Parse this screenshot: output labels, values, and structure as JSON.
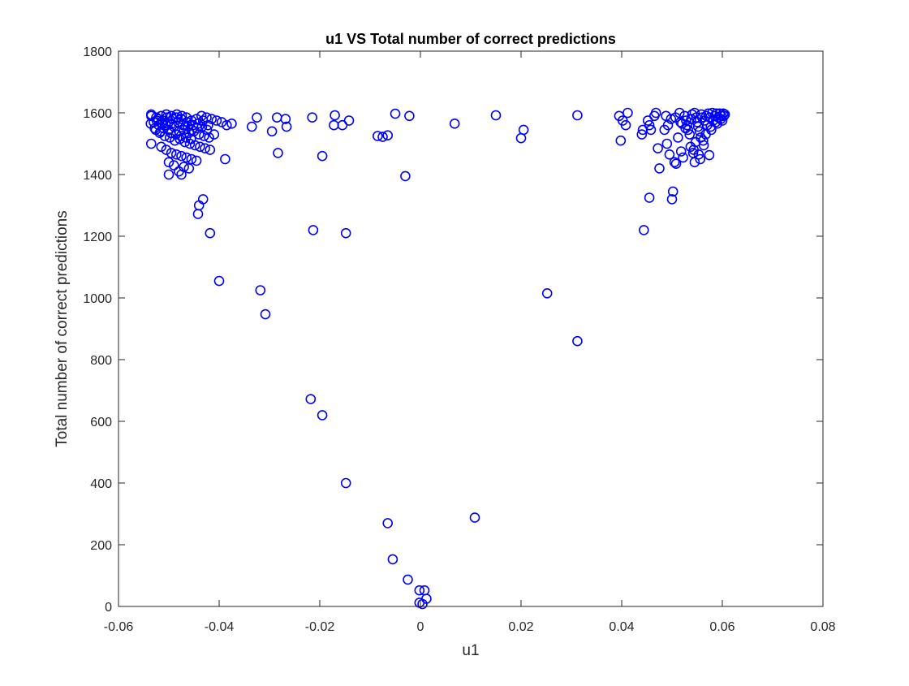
{
  "chart_data": {
    "type": "scatter",
    "title": "u1 VS Total number of correct predictions",
    "xlabel": "u1",
    "ylabel": "Total number of correct predictions",
    "xlim": [
      -0.06,
      0.08
    ],
    "ylim": [
      0,
      1800
    ],
    "xticks": [
      -0.06,
      -0.04,
      -0.02,
      0,
      0.02,
      0.04,
      0.06,
      0.08
    ],
    "xtick_labels": [
      "-0.06",
      "-0.04",
      "-0.02",
      "0",
      "0.02",
      "0.04",
      "0.06",
      "0.08"
    ],
    "yticks": [
      0,
      200,
      400,
      600,
      800,
      1000,
      1200,
      1400,
      1600,
      1800
    ],
    "ytick_labels": [
      "0",
      "200",
      "400",
      "600",
      "800",
      "1000",
      "1200",
      "1400",
      "1600",
      "1800"
    ],
    "grid": false,
    "legend": "none",
    "marker": "open-circle",
    "color": "#0000ff",
    "series": [
      {
        "points": [
          [
            -0.0535,
            1590
          ],
          [
            -0.0525,
            1585
          ],
          [
            -0.0515,
            1590
          ],
          [
            -0.0505,
            1595
          ],
          [
            -0.0495,
            1590
          ],
          [
            -0.0485,
            1585
          ],
          [
            -0.0475,
            1580
          ],
          [
            -0.0465,
            1585
          ],
          [
            -0.0455,
            1575
          ],
          [
            -0.0445,
            1580
          ],
          [
            -0.0435,
            1590
          ],
          [
            -0.0425,
            1585
          ],
          [
            -0.0415,
            1580
          ],
          [
            -0.0405,
            1575
          ],
          [
            -0.0395,
            1570
          ],
          [
            -0.0385,
            1560
          ],
          [
            -0.0375,
            1565
          ],
          [
            -0.053,
            1570
          ],
          [
            -0.052,
            1560
          ],
          [
            -0.051,
            1550
          ],
          [
            -0.05,
            1545
          ],
          [
            -0.049,
            1555
          ],
          [
            -0.048,
            1540
          ],
          [
            -0.047,
            1545
          ],
          [
            -0.046,
            1535
          ],
          [
            -0.045,
            1540
          ],
          [
            -0.044,
            1530
          ],
          [
            -0.043,
            1525
          ],
          [
            -0.042,
            1520
          ],
          [
            -0.041,
            1530
          ],
          [
            -0.0528,
            1550
          ],
          [
            -0.0518,
            1535
          ],
          [
            -0.0508,
            1525
          ],
          [
            -0.0498,
            1520
          ],
          [
            -0.0488,
            1510
          ],
          [
            -0.0478,
            1515
          ],
          [
            -0.0468,
            1505
          ],
          [
            -0.0458,
            1500
          ],
          [
            -0.0448,
            1495
          ],
          [
            -0.0438,
            1490
          ],
          [
            -0.0428,
            1485
          ],
          [
            -0.0418,
            1480
          ],
          [
            -0.0535,
            1500
          ],
          [
            -0.0515,
            1490
          ],
          [
            -0.0505,
            1480
          ],
          [
            -0.0495,
            1470
          ],
          [
            -0.0485,
            1465
          ],
          [
            -0.0475,
            1460
          ],
          [
            -0.0465,
            1455
          ],
          [
            -0.0455,
            1450
          ],
          [
            -0.0445,
            1445
          ],
          [
            -0.05,
            1440
          ],
          [
            -0.049,
            1430
          ],
          [
            -0.047,
            1425
          ],
          [
            -0.046,
            1420
          ],
          [
            -0.048,
            1410
          ],
          [
            -0.05,
            1400
          ],
          [
            -0.0475,
            1400
          ],
          [
            -0.0535,
            1595
          ],
          [
            -0.0522,
            1580
          ],
          [
            -0.0512,
            1575
          ],
          [
            -0.0502,
            1565
          ],
          [
            -0.0492,
            1580
          ],
          [
            -0.0482,
            1570
          ],
          [
            -0.0472,
            1560
          ],
          [
            -0.0462,
            1555
          ],
          [
            -0.0452,
            1560
          ],
          [
            -0.0442,
            1565
          ],
          [
            -0.0432,
            1575
          ],
          [
            -0.0422,
            1560
          ],
          [
            -0.0526,
            1545
          ],
          [
            -0.0516,
            1540
          ],
          [
            -0.0506,
            1560
          ],
          [
            -0.0496,
            1535
          ],
          [
            -0.0486,
            1530
          ],
          [
            -0.0476,
            1525
          ],
          [
            -0.0466,
            1520
          ],
          [
            -0.0456,
            1515
          ],
          [
            -0.0536,
            1565
          ],
          [
            -0.0524,
            1575
          ],
          [
            -0.0514,
            1565
          ],
          [
            -0.0504,
            1585
          ],
          [
            -0.0494,
            1565
          ],
          [
            -0.0484,
            1595
          ],
          [
            -0.0474,
            1590
          ],
          [
            -0.0464,
            1570
          ],
          [
            -0.0454,
            1545
          ],
          [
            -0.0444,
            1550
          ],
          [
            -0.0434,
            1555
          ],
          [
            -0.0424,
            1545
          ],
          [
            -0.0388,
            1450
          ],
          [
            -0.044,
            1300
          ],
          [
            -0.0442,
            1272
          ],
          [
            -0.0432,
            1320
          ],
          [
            -0.0418,
            1210
          ],
          [
            -0.04,
            1055
          ],
          [
            -0.0335,
            1555
          ],
          [
            -0.0325,
            1585
          ],
          [
            -0.0295,
            1540
          ],
          [
            -0.0285,
            1585
          ],
          [
            -0.0268,
            1580
          ],
          [
            -0.0266,
            1555
          ],
          [
            -0.0283,
            1470
          ],
          [
            -0.0318,
            1025
          ],
          [
            -0.0308,
            947
          ],
          [
            -0.0215,
            1585
          ],
          [
            -0.0213,
            1220
          ],
          [
            -0.0195,
            1460
          ],
          [
            -0.0172,
            1560
          ],
          [
            -0.017,
            1592
          ],
          [
            -0.0155,
            1560
          ],
          [
            -0.0142,
            1575
          ],
          [
            -0.0148,
            1210
          ],
          [
            -0.0218,
            672
          ],
          [
            -0.0195,
            620
          ],
          [
            -0.0148,
            400
          ],
          [
            -0.0085,
            1525
          ],
          [
            -0.0075,
            1522
          ],
          [
            -0.0065,
            1527
          ],
          [
            -0.005,
            1597
          ],
          [
            -0.003,
            1395
          ],
          [
            -0.0022,
            1590
          ],
          [
            -0.0065,
            270
          ],
          [
            -0.0055,
            153
          ],
          [
            -0.0025,
            87
          ],
          [
            -0.0002,
            52
          ],
          [
            0.0008,
            52
          ],
          [
            0.0012,
            25
          ],
          [
            -0.0002,
            12
          ],
          [
            0.0004,
            8
          ],
          [
            0.0068,
            1565
          ],
          [
            0.015,
            1592
          ],
          [
            0.0108,
            288
          ],
          [
            0.02,
            1518
          ],
          [
            0.0205,
            1545
          ],
          [
            0.0252,
            1015
          ],
          [
            0.0312,
            1592
          ],
          [
            0.0312,
            860
          ],
          [
            0.0395,
            1590
          ],
          [
            0.0398,
            1510
          ],
          [
            0.0402,
            1575
          ],
          [
            0.0408,
            1560
          ],
          [
            0.0412,
            1600
          ],
          [
            0.044,
            1530
          ],
          [
            0.0442,
            1545
          ],
          [
            0.0444,
            1220
          ],
          [
            0.0452,
            1575
          ],
          [
            0.0455,
            1560
          ],
          [
            0.0458,
            1545
          ],
          [
            0.0455,
            1325
          ],
          [
            0.0465,
            1590
          ],
          [
            0.0468,
            1600
          ],
          [
            0.0472,
            1485
          ],
          [
            0.0475,
            1420
          ],
          [
            0.0485,
            1545
          ],
          [
            0.0488,
            1590
          ],
          [
            0.049,
            1500
          ],
          [
            0.0492,
            1560
          ],
          [
            0.0495,
            1465
          ],
          [
            0.0498,
            1580
          ],
          [
            0.0502,
            1345
          ],
          [
            0.05,
            1320
          ],
          [
            0.0505,
            1440
          ],
          [
            0.0508,
            1435
          ],
          [
            0.0512,
            1520
          ],
          [
            0.0515,
            1600
          ],
          [
            0.0518,
            1475
          ],
          [
            0.052,
            1565
          ],
          [
            0.0522,
            1455
          ],
          [
            0.0525,
            1590
          ],
          [
            0.0528,
            1575
          ],
          [
            0.053,
            1560
          ],
          [
            0.0532,
            1545
          ],
          [
            0.0535,
            1530
          ],
          [
            0.0538,
            1580
          ],
          [
            0.054,
            1595
          ],
          [
            0.0542,
            1470
          ],
          [
            0.0545,
            1440
          ],
          [
            0.0545,
            1600
          ],
          [
            0.0548,
            1585
          ],
          [
            0.055,
            1570
          ],
          [
            0.0552,
            1555
          ],
          [
            0.0555,
            1540
          ],
          [
            0.0558,
            1595
          ],
          [
            0.056,
            1585
          ],
          [
            0.0562,
            1510
          ],
          [
            0.0565,
            1575
          ],
          [
            0.0568,
            1590
          ],
          [
            0.057,
            1560
          ],
          [
            0.0572,
            1598
          ],
          [
            0.0575,
            1585
          ],
          [
            0.0578,
            1545
          ],
          [
            0.058,
            1600
          ],
          [
            0.0582,
            1575
          ],
          [
            0.0585,
            1590
          ],
          [
            0.0588,
            1598
          ],
          [
            0.059,
            1565
          ],
          [
            0.0592,
            1585
          ],
          [
            0.0595,
            1598
          ],
          [
            0.0598,
            1590
          ],
          [
            0.06,
            1575
          ],
          [
            0.0602,
            1598
          ],
          [
            0.0605,
            1595
          ],
          [
            0.0603,
            1590
          ],
          [
            0.0597,
            1580
          ],
          [
            0.0587,
            1570
          ],
          [
            0.0577,
            1555
          ],
          [
            0.0567,
            1530
          ],
          [
            0.0557,
            1520
          ],
          [
            0.0547,
            1505
          ],
          [
            0.0537,
            1490
          ],
          [
            0.0527,
            1550
          ],
          [
            0.0517,
            1570
          ],
          [
            0.0507,
            1585
          ],
          [
            0.0574,
            1463
          ],
          [
            0.0556,
            1450
          ],
          [
            0.0543,
            1480
          ],
          [
            0.0553,
            1465
          ],
          [
            0.0563,
            1495
          ]
        ]
      }
    ]
  }
}
